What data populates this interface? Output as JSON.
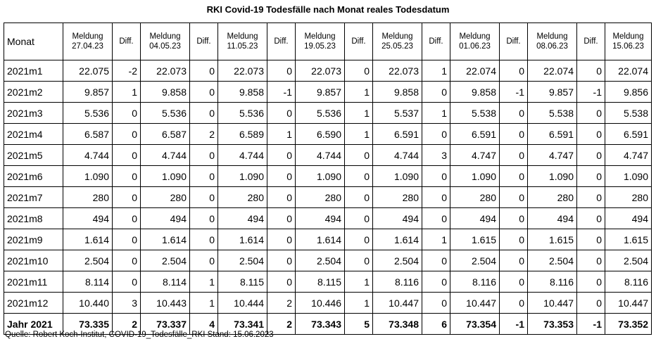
{
  "title": "RKI Covid-19 Todesfälle nach Monat reales Todesdatum",
  "table": {
    "first_header": "Monat",
    "columns": [
      [
        "Meldung",
        "27.04.23"
      ],
      [
        "Diff.",
        ""
      ],
      [
        "Meldung",
        "04.05.23"
      ],
      [
        "Diff.",
        ""
      ],
      [
        "Meldung",
        "11.05.23"
      ],
      [
        "Diff.",
        ""
      ],
      [
        "Meldung",
        "19.05.23"
      ],
      [
        "Diff.",
        ""
      ],
      [
        "Meldung",
        "25.05.23"
      ],
      [
        "Diff.",
        ""
      ],
      [
        "Meldung",
        "01.06.23"
      ],
      [
        "Diff.",
        ""
      ],
      [
        "Meldung",
        "08.06.23"
      ],
      [
        "Diff.",
        ""
      ],
      [
        "Meldung",
        "15.06.23"
      ]
    ],
    "rows": [
      [
        "2021m1",
        "22.075",
        "-2",
        "22.073",
        "0",
        "22.073",
        "0",
        "22.073",
        "0",
        "22.073",
        "1",
        "22.074",
        "0",
        "22.074",
        "0",
        "22.074"
      ],
      [
        "2021m2",
        "9.857",
        "1",
        "9.858",
        "0",
        "9.858",
        "-1",
        "9.857",
        "1",
        "9.858",
        "0",
        "9.858",
        "-1",
        "9.857",
        "-1",
        "9.856"
      ],
      [
        "2021m3",
        "5.536",
        "0",
        "5.536",
        "0",
        "5.536",
        "0",
        "5.536",
        "1",
        "5.537",
        "1",
        "5.538",
        "0",
        "5.538",
        "0",
        "5.538"
      ],
      [
        "2021m4",
        "6.587",
        "0",
        "6.587",
        "2",
        "6.589",
        "1",
        "6.590",
        "1",
        "6.591",
        "0",
        "6.591",
        "0",
        "6.591",
        "0",
        "6.591"
      ],
      [
        "2021m5",
        "4.744",
        "0",
        "4.744",
        "0",
        "4.744",
        "0",
        "4.744",
        "0",
        "4.744",
        "3",
        "4.747",
        "0",
        "4.747",
        "0",
        "4.747"
      ],
      [
        "2021m6",
        "1.090",
        "0",
        "1.090",
        "0",
        "1.090",
        "0",
        "1.090",
        "0",
        "1.090",
        "0",
        "1.090",
        "0",
        "1.090",
        "0",
        "1.090"
      ],
      [
        "2021m7",
        "280",
        "0",
        "280",
        "0",
        "280",
        "0",
        "280",
        "0",
        "280",
        "0",
        "280",
        "0",
        "280",
        "0",
        "280"
      ],
      [
        "2021m8",
        "494",
        "0",
        "494",
        "0",
        "494",
        "0",
        "494",
        "0",
        "494",
        "0",
        "494",
        "0",
        "494",
        "0",
        "494"
      ],
      [
        "2021m9",
        "1.614",
        "0",
        "1.614",
        "0",
        "1.614",
        "0",
        "1.614",
        "0",
        "1.614",
        "1",
        "1.615",
        "0",
        "1.615",
        "0",
        "1.615"
      ],
      [
        "2021m10",
        "2.504",
        "0",
        "2.504",
        "0",
        "2.504",
        "0",
        "2.504",
        "0",
        "2.504",
        "0",
        "2.504",
        "0",
        "2.504",
        "0",
        "2.504"
      ],
      [
        "2021m11",
        "8.114",
        "0",
        "8.114",
        "1",
        "8.115",
        "0",
        "8.115",
        "1",
        "8.116",
        "0",
        "8.116",
        "0",
        "8.116",
        "0",
        "8.116"
      ],
      [
        "2021m12",
        "10.440",
        "3",
        "10.443",
        "1",
        "10.444",
        "2",
        "10.446",
        "1",
        "10.447",
        "0",
        "10.447",
        "0",
        "10.447",
        "0",
        "10.447"
      ]
    ],
    "total": [
      "Jahr 2021",
      "73.335",
      "2",
      "73.337",
      "4",
      "73.341",
      "2",
      "73.343",
      "5",
      "73.348",
      "6",
      "73.354",
      "-1",
      "73.353",
      "-1",
      "73.352"
    ]
  },
  "source": "Quelle: Robert Koch-Institut, COVID-19_Todesfälle_RKI Stand: 15.06.2023"
}
